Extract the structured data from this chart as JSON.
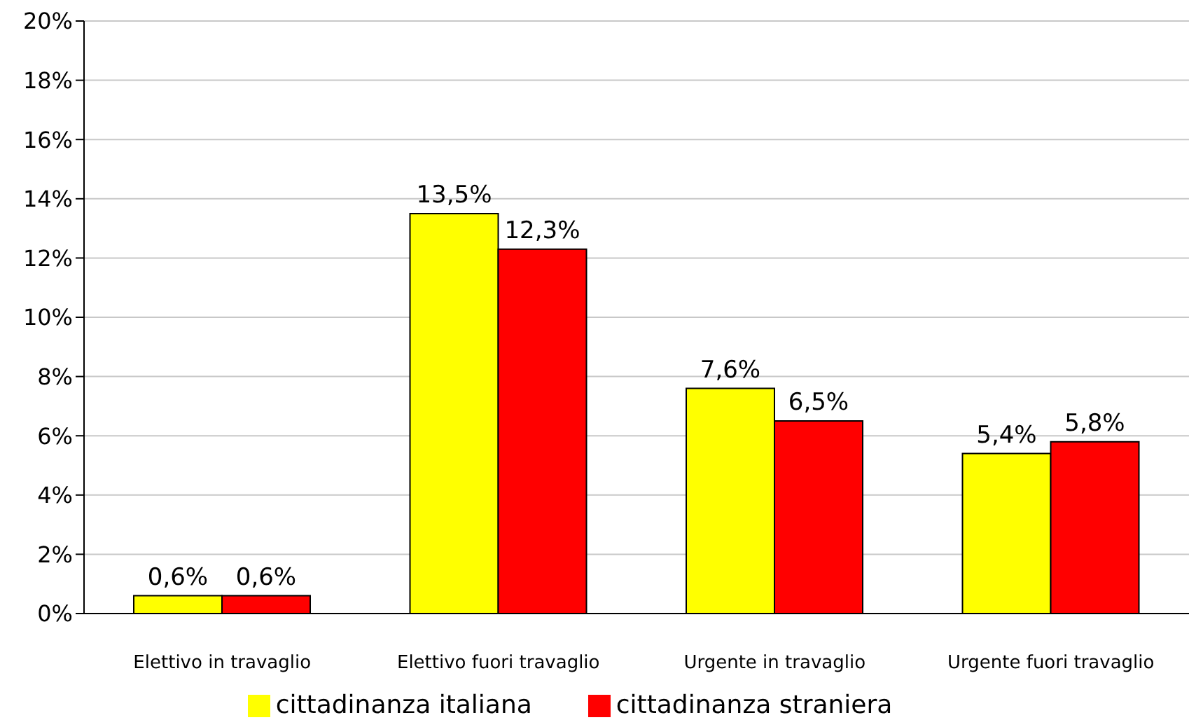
{
  "chart_data": {
    "type": "bar",
    "categories": [
      "Elettivo in travaglio",
      "Elettivo fuori travaglio",
      "Urgente in travaglio",
      "Urgente fuori travaglio"
    ],
    "series": [
      {
        "name": "cittadinanza italiana",
        "color": "#ffff00",
        "values": [
          0.6,
          13.5,
          7.6,
          5.4
        ],
        "value_labels": [
          "0,6%",
          "13,5%",
          "7,6%",
          "5,4%"
        ]
      },
      {
        "name": "cittadinanza straniera",
        "color": "#ff0000",
        "values": [
          0.6,
          12.3,
          6.5,
          5.8
        ],
        "value_labels": [
          "0,6%",
          "12,3%",
          "6,5%",
          "5,8%"
        ]
      }
    ],
    "ylim": [
      0,
      20
    ],
    "yticks": [
      {
        "value": 0,
        "label": "0%"
      },
      {
        "value": 2,
        "label": "2%"
      },
      {
        "value": 4,
        "label": "4%"
      },
      {
        "value": 6,
        "label": "6%"
      },
      {
        "value": 8,
        "label": "8%"
      },
      {
        "value": 10,
        "label": "10%"
      },
      {
        "value": 12,
        "label": "12%"
      },
      {
        "value": 14,
        "label": "14%"
      },
      {
        "value": 16,
        "label": "16%"
      },
      {
        "value": 18,
        "label": "18%"
      },
      {
        "value": 20,
        "label": "20%"
      }
    ],
    "grid": "y",
    "legend": "bottom"
  }
}
